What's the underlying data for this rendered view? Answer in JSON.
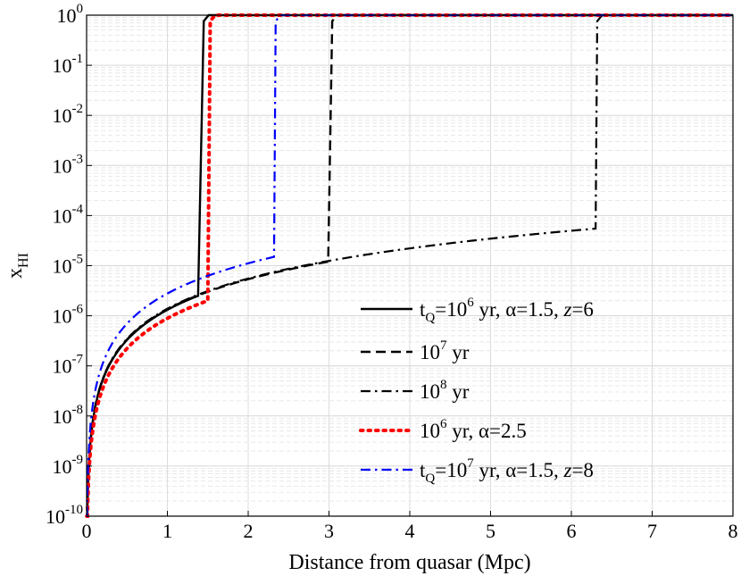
{
  "chart_data": {
    "type": "line",
    "xlabel": "Distance from quasar (Mpc)",
    "ylabel": "x_HI",
    "xlim": [
      0,
      8
    ],
    "ylim_log10": [
      -10,
      0
    ],
    "yscale": "log",
    "grid": true,
    "legend_location": "lower-right",
    "x_ticks": [
      {
        "value": 0,
        "label": "0"
      },
      {
        "value": 1,
        "label": "1"
      },
      {
        "value": 2,
        "label": "2"
      },
      {
        "value": 3,
        "label": "3"
      },
      {
        "value": 4,
        "label": "4"
      },
      {
        "value": 5,
        "label": "5"
      },
      {
        "value": 6,
        "label": "6"
      },
      {
        "value": 7,
        "label": "7"
      },
      {
        "value": 8,
        "label": "8"
      }
    ],
    "y_ticks": [
      {
        "exp": 0,
        "base": "10",
        "sup": "0"
      },
      {
        "exp": -1,
        "base": "10",
        "sup": "-1"
      },
      {
        "exp": -2,
        "base": "10",
        "sup": "-2"
      },
      {
        "exp": -3,
        "base": "10",
        "sup": "-3"
      },
      {
        "exp": -4,
        "base": "10",
        "sup": "-4"
      },
      {
        "exp": -5,
        "base": "10",
        "sup": "-5"
      },
      {
        "exp": -6,
        "base": "10",
        "sup": "-6"
      },
      {
        "exp": -7,
        "base": "10",
        "sup": "-7"
      },
      {
        "exp": -8,
        "base": "10",
        "sup": "-8"
      },
      {
        "exp": -9,
        "base": "10",
        "sup": "-9"
      },
      {
        "exp": -10,
        "base": "10",
        "sup": "-10"
      }
    ],
    "series": [
      {
        "name": "tQ=10^6 yr, alpha=1.5, z=6",
        "color": "#000000",
        "dash": "solid",
        "legend": {
          "pre": "t",
          "sub": "Q",
          "mid": "=10",
          "sup": "6",
          "post": " yr, α=1.5, ",
          "ital": "z",
          "tail": "=6"
        },
        "r_front": 1.38,
        "x_front": 2.5e-06,
        "r_wall": 1.45
      },
      {
        "name": "10^7 yr",
        "color": "#000000",
        "dash": "dashed",
        "legend": {
          "pre": "",
          "sub": "",
          "mid": "10",
          "sup": "7",
          "post": " yr",
          "ital": "",
          "tail": ""
        },
        "r_front": 2.99,
        "x_front": 1.2e-05,
        "r_wall": 3.04
      },
      {
        "name": "10^8 yr",
        "color": "#000000",
        "dash": "dashdot",
        "legend": {
          "pre": "",
          "sub": "",
          "mid": "10",
          "sup": "8",
          "post": " yr",
          "ital": "",
          "tail": ""
        },
        "r_front": 6.3,
        "x_front": 5.5e-05,
        "r_wall": 6.32
      },
      {
        "name": "10^6 yr, alpha=2.5",
        "color": "#ff0000",
        "dash": "dotted",
        "legend": {
          "pre": "",
          "sub": "",
          "mid": "10",
          "sup": "6",
          "post": " yr, α=2.5",
          "ital": "",
          "tail": ""
        },
        "r_front": 1.5,
        "x_front": 2e-06,
        "r_wall": 1.53
      },
      {
        "name": "tQ=10^7 yr, alpha=1.5, z=8",
        "color": "#0000ff",
        "dash": "dashdot",
        "legend": {
          "pre": "t",
          "sub": "Q",
          "mid": "=10",
          "sup": "7",
          "post": " yr, α=1.5, ",
          "ital": "z",
          "tail": "=8"
        },
        "r_front": 2.32,
        "x_front": 1.5e-05,
        "r_wall": 2.34
      }
    ]
  }
}
